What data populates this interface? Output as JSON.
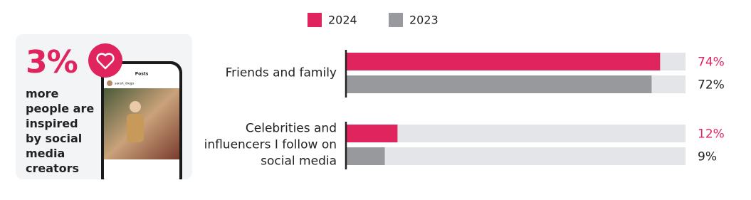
{
  "card": {
    "stat": "3%",
    "text": "more people are inspired by social media creators",
    "phone_header": "Posts",
    "phone_user": "sarah_diego"
  },
  "chart_data": {
    "type": "bar",
    "orientation": "horizontal",
    "categories": [
      "Friends and family",
      "Celebrities and influencers I follow on social media"
    ],
    "xlim": [
      0,
      80
    ],
    "series": [
      {
        "name": "2024",
        "color": "#e0245e",
        "values": [
          74,
          12
        ],
        "value_labels": [
          "74%",
          "12%"
        ]
      },
      {
        "name": "2023",
        "color": "#97999c",
        "values": [
          72,
          9
        ],
        "value_labels": [
          "72%",
          "9%"
        ]
      }
    ]
  }
}
